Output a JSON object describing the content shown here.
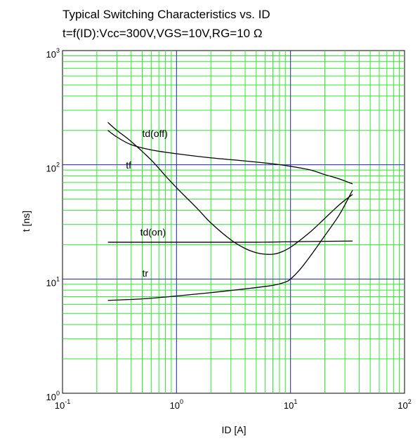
{
  "chart_data": {
    "type": "line",
    "title": "Typical Switching Characteristics vs. ID",
    "subtitle": "t=f(ID):Vcc=300V,VGS=10V,RG=10 Ω",
    "xlabel": "ID  [A]",
    "ylabel": "t [ns]",
    "xscale": "log",
    "yscale": "log",
    "xlim": [
      0.1,
      100
    ],
    "ylim": [
      1,
      1000
    ],
    "grid": true,
    "x_tick_labels": [
      {
        "value": 0.1,
        "base": "10",
        "exp": "-1"
      },
      {
        "value": 1,
        "base": "10",
        "exp": "0"
      },
      {
        "value": 10,
        "base": "10",
        "exp": "1"
      },
      {
        "value": 100,
        "base": "10",
        "exp": "2"
      }
    ],
    "y_tick_labels": [
      {
        "value": 1,
        "base": "10",
        "exp": "0"
      },
      {
        "value": 10,
        "base": "10",
        "exp": "1"
      },
      {
        "value": 100,
        "base": "10",
        "exp": "2"
      },
      {
        "value": 1000,
        "base": "10",
        "exp": "3"
      }
    ],
    "colors": {
      "grid_major": "#1f1fc8",
      "grid_minor": "#2ee82e",
      "series": "#000000"
    },
    "series": [
      {
        "name": "td(off)",
        "label_at": [
          0.5,
          175
        ],
        "points": [
          [
            0.25,
            200
          ],
          [
            0.3,
            175
          ],
          [
            0.4,
            150
          ],
          [
            0.6,
            135
          ],
          [
            1,
            125
          ],
          [
            2,
            115
          ],
          [
            4,
            108
          ],
          [
            7,
            102
          ],
          [
            10,
            97
          ],
          [
            15,
            90
          ],
          [
            20,
            82
          ],
          [
            27,
            75
          ],
          [
            35,
            68
          ]
        ]
      },
      {
        "name": "tf",
        "label_at": [
          0.36,
          93
        ],
        "points": [
          [
            0.25,
            235
          ],
          [
            0.3,
            200
          ],
          [
            0.4,
            160
          ],
          [
            0.6,
            110
          ],
          [
            0.8,
            80
          ],
          [
            1,
            63
          ],
          [
            1.5,
            42
          ],
          [
            2,
            31
          ],
          [
            3,
            22
          ],
          [
            4,
            18.5
          ],
          [
            5,
            17
          ],
          [
            6,
            16.5
          ],
          [
            7,
            16.5
          ],
          [
            8,
            17
          ],
          [
            10,
            19
          ],
          [
            15,
            26
          ],
          [
            20,
            34
          ],
          [
            27,
            45
          ],
          [
            35,
            55
          ]
        ]
      },
      {
        "name": "td(on)",
        "label_at": [
          0.48,
          24
        ],
        "points": [
          [
            0.25,
            21
          ],
          [
            1,
            21
          ],
          [
            5,
            21
          ],
          [
            10,
            21.2
          ],
          [
            35,
            21.5
          ]
        ]
      },
      {
        "name": "tr",
        "label_at": [
          0.5,
          10.5
        ],
        "points": [
          [
            0.25,
            6.5
          ],
          [
            0.5,
            6.7
          ],
          [
            1,
            7.1
          ],
          [
            2,
            7.6
          ],
          [
            4,
            8.2
          ],
          [
            7,
            8.8
          ],
          [
            9,
            9.4
          ],
          [
            10,
            10
          ],
          [
            12,
            12
          ],
          [
            15,
            16
          ],
          [
            20,
            24
          ],
          [
            27,
            37
          ],
          [
            35,
            60
          ]
        ]
      }
    ]
  }
}
